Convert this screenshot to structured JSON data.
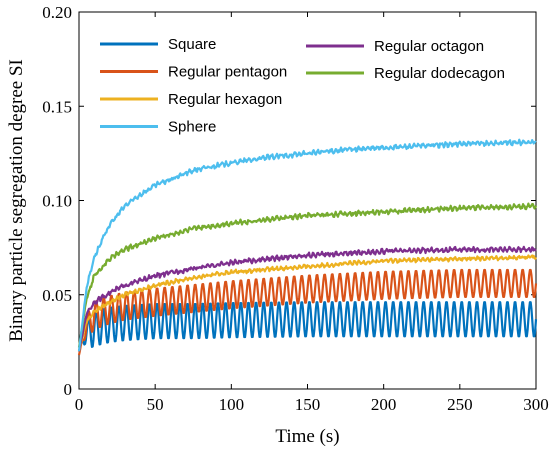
{
  "chart_data": {
    "type": "line",
    "xlabel": "Time (s)",
    "ylabel": "Binary particle segregation degree SI",
    "xlim": [
      0,
      300
    ],
    "ylim": [
      0,
      0.2
    ],
    "xticks": [
      0,
      50,
      100,
      150,
      200,
      250,
      300
    ],
    "xtick_labels": [
      "0",
      "50",
      "100",
      "150",
      "200",
      "250",
      "300"
    ],
    "yticks": [
      0,
      0.05,
      0.1,
      0.15,
      0.2
    ],
    "ytick_labels": [
      "0",
      "0.05",
      "0.10",
      "0.15",
      "0.20"
    ],
    "grid": false,
    "legend_position": "top-left",
    "series": [
      {
        "name": "Square",
        "color": "#0072BD",
        "x": [
          0,
          5,
          10,
          20,
          30,
          50,
          75,
          100,
          150,
          200,
          250,
          300
        ],
        "y": [
          0.022,
          0.03,
          0.032,
          0.034,
          0.035,
          0.036,
          0.036,
          0.0365,
          0.037,
          0.037,
          0.037,
          0.037
        ],
        "oscillation": {
          "period": 5,
          "amplitude": 0.0095
        }
      },
      {
        "name": "Regular pentagon",
        "color": "#D95319",
        "x": [
          0,
          5,
          10,
          20,
          30,
          50,
          75,
          100,
          150,
          200,
          250,
          300
        ],
        "y": [
          0.018,
          0.034,
          0.039,
          0.042,
          0.044,
          0.046,
          0.048,
          0.05,
          0.053,
          0.055,
          0.056,
          0.056
        ],
        "oscillation": {
          "period": 5,
          "amplitude": 0.0075
        }
      },
      {
        "name": "Regular hexagon",
        "color": "#EDB120",
        "x": [
          0,
          5,
          10,
          20,
          30,
          50,
          75,
          100,
          150,
          200,
          250,
          300
        ],
        "y": [
          0.02,
          0.036,
          0.041,
          0.046,
          0.05,
          0.055,
          0.059,
          0.062,
          0.065,
          0.068,
          0.069,
          0.07
        ],
        "oscillation": {
          "period": 3,
          "amplitude": 0.001
        }
      },
      {
        "name": "Sphere",
        "color": "#4DBEEE",
        "x": [
          0,
          5,
          10,
          20,
          30,
          40,
          50,
          75,
          100,
          125,
          150,
          175,
          200,
          250,
          300
        ],
        "y": [
          0.02,
          0.054,
          0.07,
          0.087,
          0.097,
          0.103,
          0.108,
          0.116,
          0.12,
          0.123,
          0.125,
          0.127,
          0.128,
          0.13,
          0.131
        ],
        "oscillation": {
          "period": 3,
          "amplitude": 0.0012
        }
      },
      {
        "name": "Regular octagon",
        "color": "#7E2F8E",
        "x": [
          0,
          5,
          10,
          20,
          30,
          50,
          75,
          100,
          150,
          200,
          250,
          300
        ],
        "y": [
          0.02,
          0.04,
          0.046,
          0.051,
          0.055,
          0.06,
          0.064,
          0.067,
          0.071,
          0.073,
          0.074,
          0.074
        ],
        "oscillation": {
          "period": 3,
          "amplitude": 0.0012
        }
      },
      {
        "name": "Regular dodecagon",
        "color": "#77AC30",
        "x": [
          0,
          5,
          10,
          20,
          30,
          50,
          75,
          100,
          150,
          200,
          250,
          300
        ],
        "y": [
          0.022,
          0.048,
          0.06,
          0.069,
          0.074,
          0.08,
          0.085,
          0.088,
          0.092,
          0.094,
          0.096,
          0.097
        ],
        "oscillation": {
          "period": 3,
          "amplitude": 0.0012
        }
      }
    ],
    "legend_order": [
      0,
      1,
      2,
      3,
      4,
      5
    ]
  }
}
